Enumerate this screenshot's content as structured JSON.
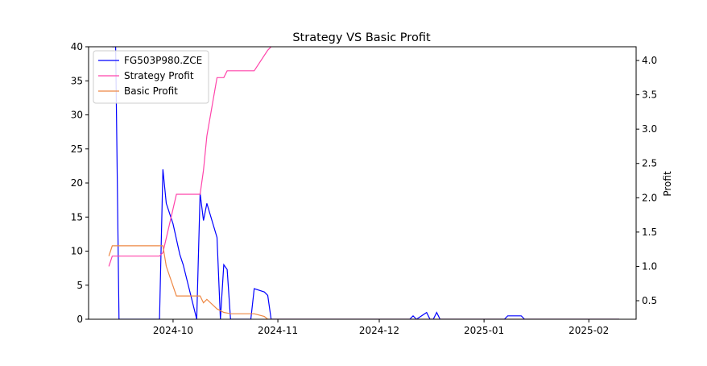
{
  "chart_data": {
    "type": "line",
    "title": "Strategy VS Basic Profit",
    "xlabel": "",
    "ylabel_left": "",
    "ylabel_right": "Profit",
    "x_ticks": [
      "2024-10",
      "2024-11",
      "2024-12",
      "2025-01",
      "2025-02"
    ],
    "x_tick_dates": [
      "2024-10-01",
      "2024-11-01",
      "2024-12-01",
      "2025-01-01",
      "2025-02-01"
    ],
    "xlim": [
      "2024-09-06",
      "2025-02-15"
    ],
    "ylim_left": [
      0,
      40
    ],
    "ylim_right": [
      0.23,
      4.2
    ],
    "yticks_left": [
      "0",
      "5",
      "10",
      "15",
      "20",
      "25",
      "30",
      "35",
      "40"
    ],
    "yticks_right": [
      "0.5",
      "1.0",
      "1.5",
      "2.0",
      "2.5",
      "3.0",
      "3.5",
      "4.0"
    ],
    "grid": false,
    "legend_position": "top-left",
    "series": [
      {
        "name": "FG503P980.ZCE",
        "axis": "left",
        "color": "#0000ff",
        "points": [
          [
            "2024-09-13",
            40
          ],
          [
            "2024-09-14",
            40
          ],
          [
            "2024-09-15",
            0
          ],
          [
            "2024-09-26",
            0
          ],
          [
            "2024-09-27",
            0
          ],
          [
            "2024-09-28",
            22
          ],
          [
            "2024-09-29",
            17
          ],
          [
            "2024-10-01",
            14
          ],
          [
            "2024-10-03",
            9.5
          ],
          [
            "2024-10-04",
            8
          ],
          [
            "2024-10-08",
            0
          ],
          [
            "2024-10-09",
            18.5
          ],
          [
            "2024-10-10",
            14.5
          ],
          [
            "2024-10-11",
            17
          ],
          [
            "2024-10-14",
            12
          ],
          [
            "2024-10-15",
            0
          ],
          [
            "2024-10-16",
            8
          ],
          [
            "2024-10-17",
            7.3
          ],
          [
            "2024-10-18",
            0
          ],
          [
            "2024-10-24",
            0
          ],
          [
            "2024-10-25",
            4.5
          ],
          [
            "2024-10-28",
            4
          ],
          [
            "2024-10-29",
            3.5
          ],
          [
            "2024-10-30",
            0
          ],
          [
            "2024-12-10",
            0
          ],
          [
            "2024-12-11",
            0.5
          ],
          [
            "2024-12-12",
            0
          ],
          [
            "2024-12-15",
            1
          ],
          [
            "2024-12-16",
            0
          ],
          [
            "2024-12-17",
            0
          ],
          [
            "2024-12-18",
            1
          ],
          [
            "2024-12-19",
            0
          ],
          [
            "2025-01-07",
            0
          ],
          [
            "2025-01-08",
            0.5
          ],
          [
            "2025-01-12",
            0.5
          ],
          [
            "2025-01-13",
            0
          ],
          [
            "2025-02-10",
            0
          ]
        ]
      },
      {
        "name": "Strategy Profit",
        "axis": "right",
        "color": "#ff44aa",
        "points": [
          [
            "2024-09-12",
            1.0
          ],
          [
            "2024-09-13",
            1.15
          ],
          [
            "2024-09-27",
            1.15
          ],
          [
            "2024-09-28",
            1.2
          ],
          [
            "2024-10-02",
            2.05
          ],
          [
            "2024-10-09",
            2.05
          ],
          [
            "2024-10-10",
            2.4
          ],
          [
            "2024-10-11",
            2.9
          ],
          [
            "2024-10-14",
            3.75
          ],
          [
            "2024-10-16",
            3.75
          ],
          [
            "2024-10-17",
            3.85
          ],
          [
            "2024-10-25",
            3.85
          ],
          [
            "2024-10-29",
            4.15
          ],
          [
            "2024-10-30",
            4.2
          ]
        ]
      },
      {
        "name": "Basic Profit",
        "axis": "right",
        "color": "#ee8844",
        "points": [
          [
            "2024-09-12",
            1.15
          ],
          [
            "2024-09-13",
            1.3
          ],
          [
            "2024-09-27",
            1.3
          ],
          [
            "2024-09-28",
            1.3
          ],
          [
            "2024-09-29",
            1.0
          ],
          [
            "2024-10-02",
            0.57
          ],
          [
            "2024-10-09",
            0.57
          ],
          [
            "2024-10-10",
            0.47
          ],
          [
            "2024-10-11",
            0.52
          ],
          [
            "2024-10-14",
            0.38
          ],
          [
            "2024-10-16",
            0.33
          ],
          [
            "2024-10-17",
            0.32
          ],
          [
            "2024-10-18",
            0.31
          ],
          [
            "2024-10-25",
            0.31
          ],
          [
            "2024-10-28",
            0.27
          ],
          [
            "2024-10-29",
            0.23
          ],
          [
            "2025-02-10",
            0.23
          ]
        ]
      }
    ]
  }
}
